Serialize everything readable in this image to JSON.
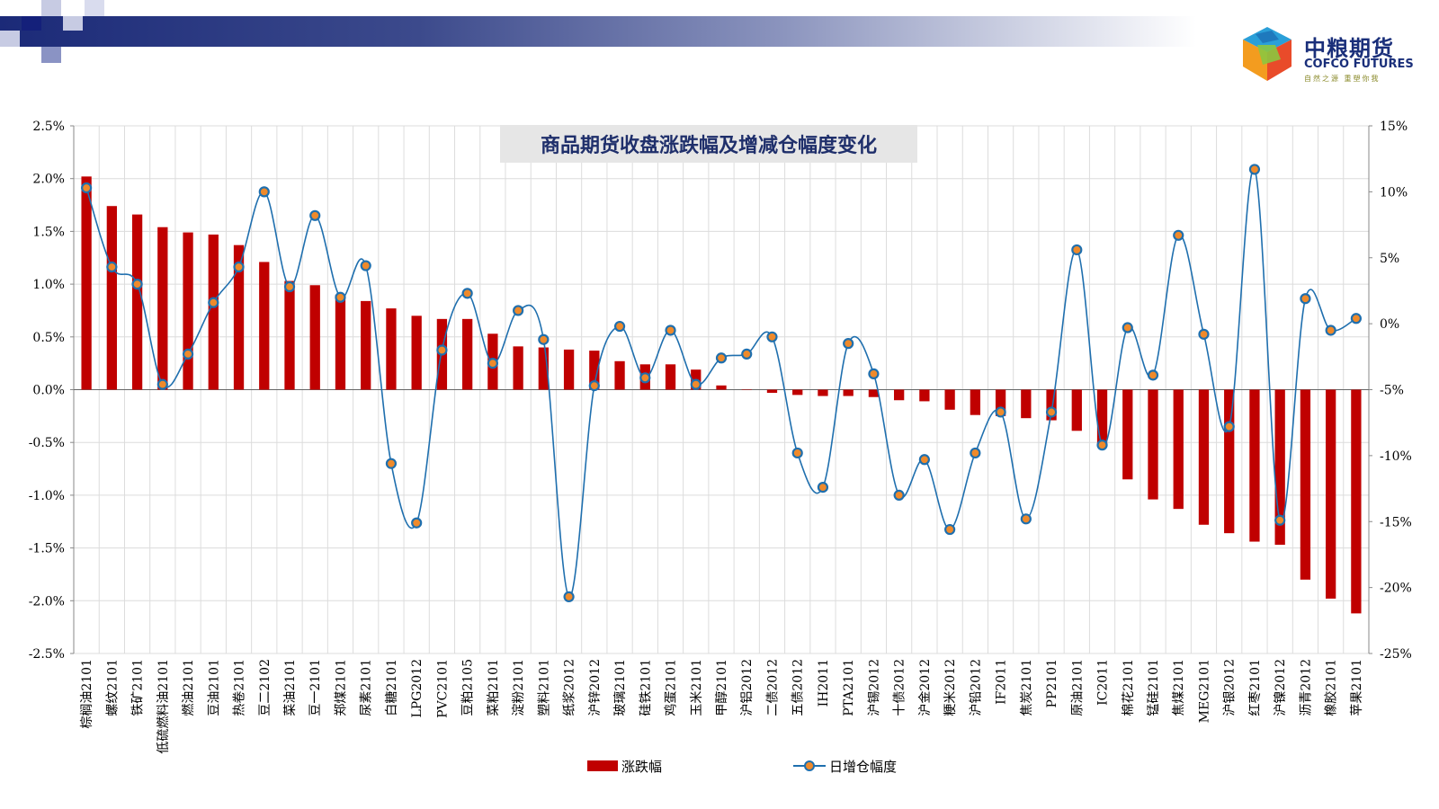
{
  "logo": {
    "cn": "中粮期货",
    "en": "COFCO FUTURES",
    "slogan": "自然之源 重塑你我"
  },
  "chart_data": {
    "type": "bar",
    "title": "商品期货收盘涨跌幅及增减仓幅度变化",
    "categories": [
      "棕榈油2101",
      "螺纹2101",
      "铁矿2101",
      "低硫燃料油2101",
      "燃油2101",
      "豆油2101",
      "热卷2101",
      "豆二2102",
      "菜油2101",
      "豆一2101",
      "郑煤2101",
      "尿素2101",
      "白糖2101",
      "LPG2012",
      "PVC2101",
      "豆粕2105",
      "菜粕2101",
      "淀粉2101",
      "塑料2101",
      "纸浆2012",
      "沪锌2012",
      "玻璃2101",
      "硅铁2101",
      "鸡蛋2101",
      "玉米2101",
      "甲醇2101",
      "沪铝2012",
      "二债2012",
      "五债2012",
      "IH2011",
      "PTA2101",
      "沪锡2012",
      "十债2012",
      "沪金2012",
      "粳米2012",
      "沪铅2012",
      "IF2011",
      "焦炭2101",
      "PP2101",
      "原油2101",
      "IC2011",
      "棉花2101",
      "锰硅2101",
      "焦煤2101",
      "MEG2101",
      "沪银2012",
      "红枣2101",
      "沪镍2012",
      "沥青2012",
      "橡胶2101",
      "苹果2101"
    ],
    "series": [
      {
        "name": "涨跌幅",
        "type": "bar",
        "axis": "left",
        "color": "#c00000",
        "values": [
          2.02,
          1.74,
          1.66,
          1.54,
          1.49,
          1.47,
          1.37,
          1.21,
          1.03,
          0.99,
          0.9,
          0.84,
          0.77,
          0.7,
          0.67,
          0.67,
          0.53,
          0.41,
          0.4,
          0.38,
          0.37,
          0.27,
          0.24,
          0.24,
          0.19,
          0.04,
          0.0,
          -0.03,
          -0.05,
          -0.06,
          -0.06,
          -0.07,
          -0.1,
          -0.11,
          -0.19,
          -0.24,
          -0.25,
          -0.27,
          -0.29,
          -0.39,
          -0.53,
          -0.85,
          -1.04,
          -1.13,
          -1.28,
          -1.36,
          -1.44,
          -1.47,
          -1.8,
          -1.98,
          -2.12
        ]
      },
      {
        "name": "日增仓幅度",
        "type": "line",
        "axis": "right",
        "color": "#1f6fae",
        "marker_color": "#ef8a2b",
        "values": [
          10.3,
          4.3,
          3.0,
          -4.6,
          -2.3,
          1.6,
          4.3,
          10.0,
          2.8,
          8.2,
          2.0,
          4.4,
          -10.6,
          -15.1,
          -2.0,
          2.3,
          -3.0,
          1.0,
          -1.2,
          -20.7,
          -4.7,
          -0.2,
          -4.1,
          -0.5,
          -4.6,
          -2.6,
          -2.3,
          -1.0,
          -9.8,
          -12.4,
          -1.5,
          -3.8,
          -13.0,
          -10.3,
          -15.6,
          -9.8,
          -6.7,
          -14.8,
          -6.7,
          5.6,
          -9.2,
          -0.3,
          -3.9,
          6.7,
          -0.8,
          -7.8,
          11.7,
          -14.9,
          1.9,
          -0.5,
          0.4
        ]
      }
    ],
    "left_axis": {
      "min": -2.5,
      "max": 2.5,
      "step": 0.5,
      "format": "percent1"
    },
    "right_axis": {
      "min": -25,
      "max": 15,
      "step": 5,
      "format": "percent0"
    },
    "legend": {
      "position": "bottom",
      "items": [
        "涨跌幅",
        "日增仓幅度"
      ]
    },
    "grid": true
  }
}
